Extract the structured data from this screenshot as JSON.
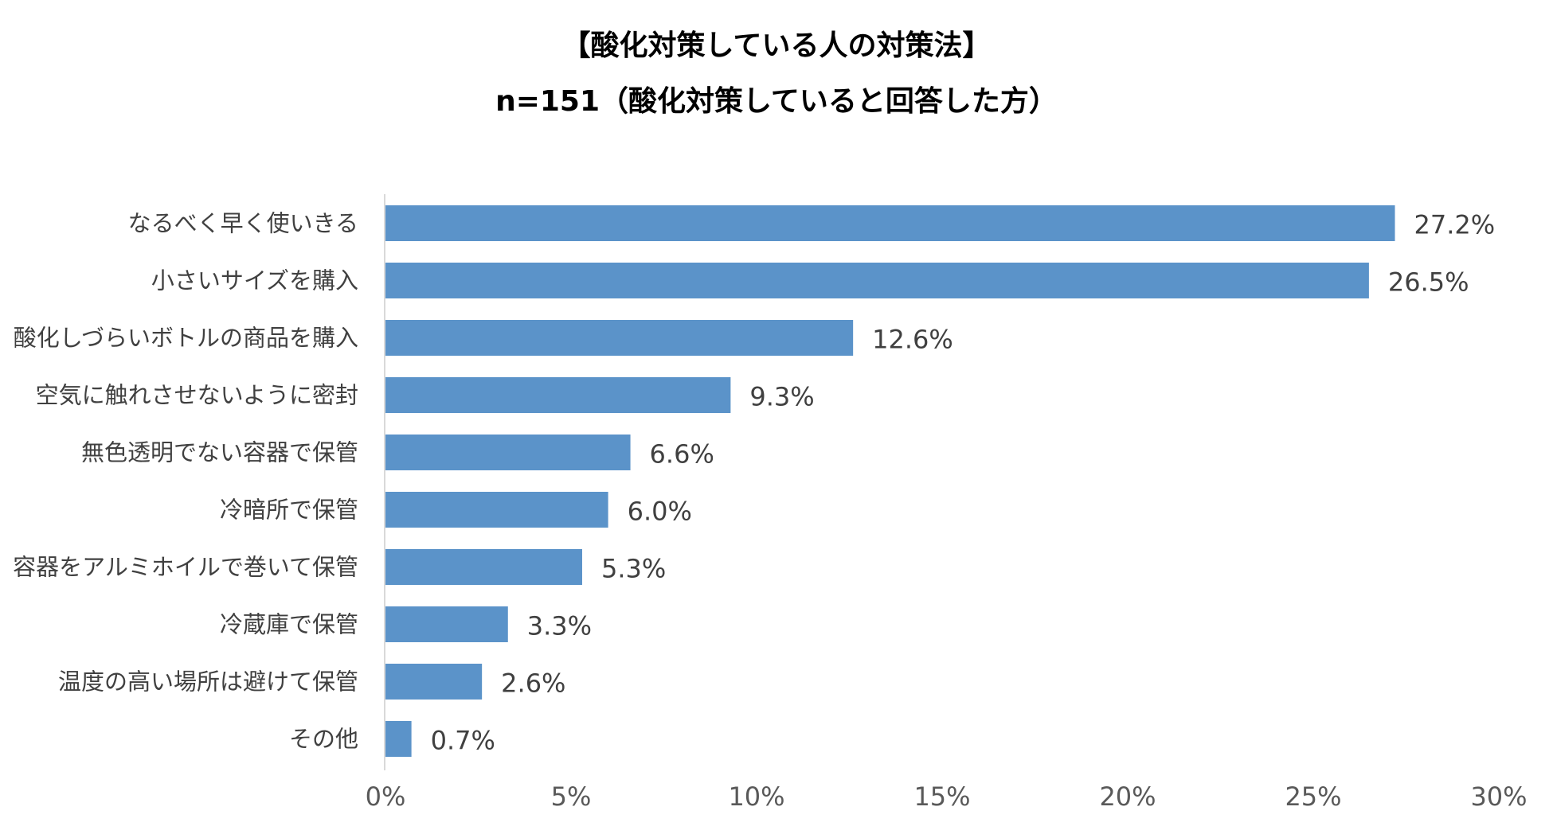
{
  "chart_data": {
    "type": "bar",
    "orientation": "horizontal",
    "title": "【酸化対策している人の対策法】",
    "subtitle": "n=151（酸化対策していると回答した方）",
    "categories": [
      "なるべく早く使いきる",
      "小さいサイズを購入",
      "酸化しづらいボトルの商品を購入",
      "空気に触れさせないように密封",
      "無色透明でない容器で保管",
      "冷暗所で保管",
      "容器をアルミホイルで巻いて保管",
      "冷蔵庫で保管",
      "温度の高い場所は避けて保管",
      "その他"
    ],
    "values": [
      27.2,
      26.5,
      12.6,
      9.3,
      6.6,
      6.0,
      5.3,
      3.3,
      2.6,
      0.7
    ],
    "value_labels": [
      "27.2%",
      "26.5%",
      "12.6%",
      "9.3%",
      "6.6%",
      "6.0%",
      "5.3%",
      "3.3%",
      "2.6%",
      "0.7%"
    ],
    "xlim": [
      0,
      30
    ],
    "xticks": [
      0,
      5,
      10,
      15,
      20,
      25,
      30
    ],
    "xtick_labels": [
      "0%",
      "5%",
      "10%",
      "15%",
      "20%",
      "25%",
      "30%"
    ],
    "xlabel": "",
    "ylabel": "",
    "grid": false,
    "legend": "none",
    "bar_color": "#5b93c9"
  }
}
